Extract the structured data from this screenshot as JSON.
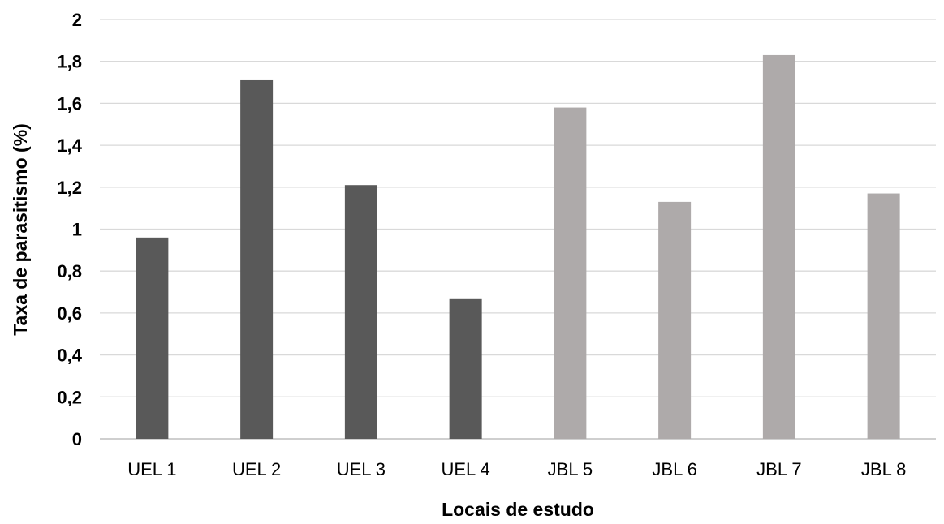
{
  "chart_data": {
    "type": "bar",
    "title": "",
    "xlabel": "Locais de estudo",
    "ylabel": "Taxa de parasitismo (%)",
    "ylim": [
      0,
      2
    ],
    "ytick_values": [
      0,
      0.2,
      0.4,
      0.6,
      0.8,
      1,
      1.2,
      1.4,
      1.6,
      1.8,
      2
    ],
    "ytick_labels": [
      "0",
      "0,2",
      "0,4",
      "0,6",
      "0,8",
      "1",
      "1,2",
      "1,4",
      "1,6",
      "1,8",
      "2"
    ],
    "categories": [
      "UEL 1",
      "UEL 2",
      "UEL 3",
      "UEL 4",
      "JBL 5",
      "JBL 6",
      "JBL 7",
      "JBL 8"
    ],
    "values": [
      0.96,
      1.71,
      1.21,
      0.67,
      1.58,
      1.13,
      1.83,
      1.17
    ],
    "bar_colors": [
      "#595959",
      "#595959",
      "#595959",
      "#595959",
      "#aeaaaa",
      "#aeaaaa",
      "#aeaaaa",
      "#aeaaaa"
    ],
    "grid": true,
    "legend": "none"
  }
}
